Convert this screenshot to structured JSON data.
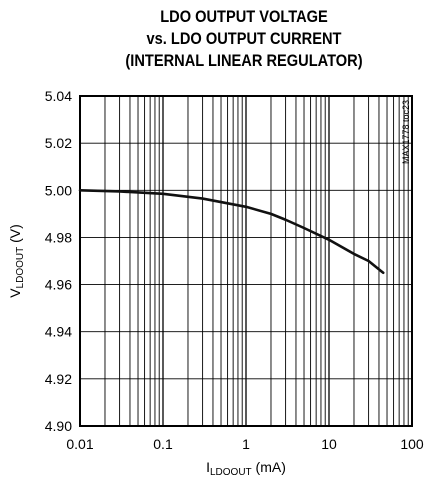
{
  "chart_data": {
    "type": "line",
    "title_lines": [
      "LDO OUTPUT VOLTAGE",
      "vs. LDO OUTPUT CURRENT",
      "(INTERNAL LINEAR REGULATOR)"
    ],
    "xlabel": {
      "main": "I",
      "sub": "LDOOUT",
      "unit": " (mA)"
    },
    "ylabel": {
      "main": "V",
      "sub": "LDOOUT",
      "unit": " (V)"
    },
    "x_scale": "log",
    "xlim": [
      0.01,
      100
    ],
    "ylim": [
      4.9,
      5.04
    ],
    "x_ticks": [
      0.01,
      0.1,
      1,
      10,
      100
    ],
    "x_tick_labels": [
      "0.01",
      "0.1",
      "1",
      "10",
      "100"
    ],
    "y_ticks": [
      4.9,
      4.92,
      4.94,
      4.96,
      4.98,
      5.0,
      5.02,
      5.04
    ],
    "y_tick_labels": [
      "4.90",
      "4.92",
      "4.94",
      "4.96",
      "4.98",
      "5.00",
      "5.02",
      "5.04"
    ],
    "grid": true,
    "annotation": "MAX1778 toc23",
    "series": [
      {
        "x": [
          0.01,
          0.03,
          0.1,
          0.3,
          1,
          2,
          3,
          5,
          10,
          20,
          30,
          45
        ],
        "y": [
          5.0,
          4.9995,
          4.9985,
          4.9965,
          4.993,
          4.99,
          4.9875,
          4.984,
          4.979,
          4.973,
          4.97,
          4.965
        ]
      }
    ]
  }
}
